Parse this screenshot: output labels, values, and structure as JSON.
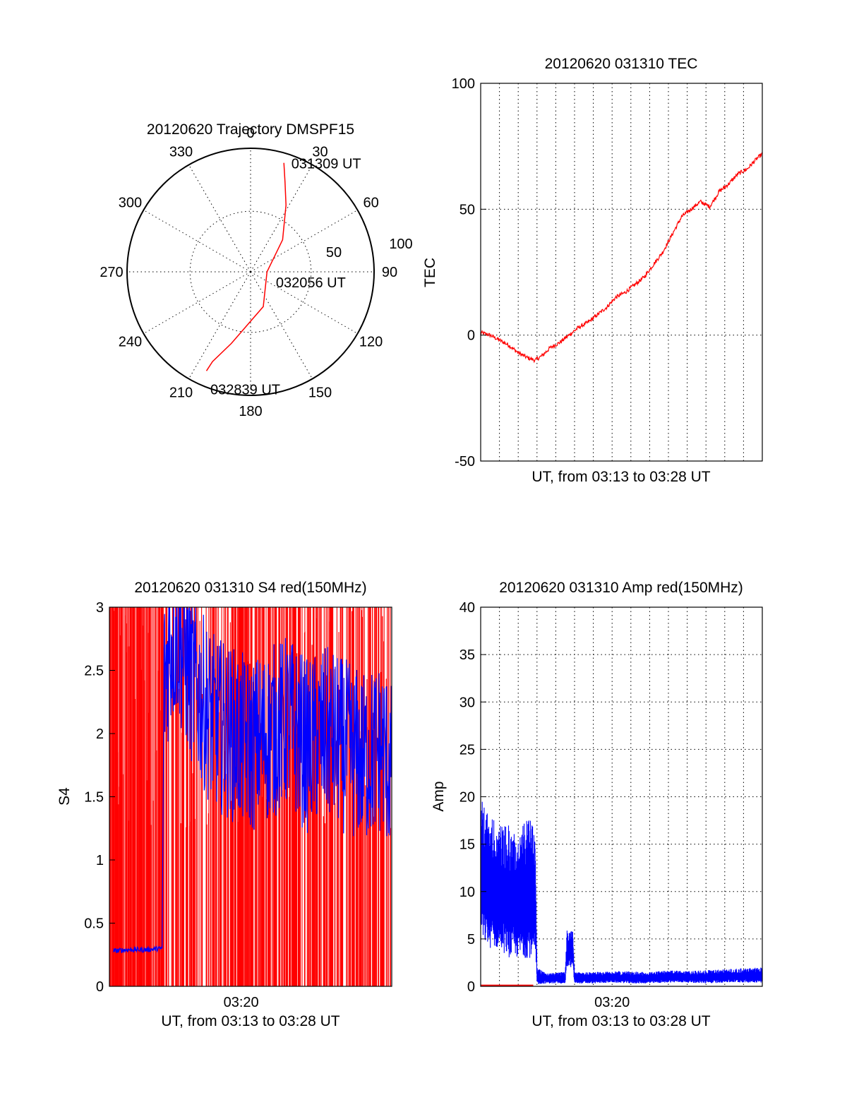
{
  "chart_data": [
    {
      "type": "polar",
      "title": "20120620 Trajectory DMSPF15",
      "azimuth_labels": [
        "0",
        "30",
        "60",
        "90",
        "120",
        "150",
        "180",
        "210",
        "240",
        "270",
        "300",
        "330"
      ],
      "radial_labels": [
        "50",
        "100"
      ],
      "elevation_range": [
        0,
        90
      ],
      "grid": true,
      "series": [
        {
          "color": "#ff0000",
          "points": [
            {
              "az": 17,
              "el": 7
            },
            {
              "az": 21,
              "el": 20
            },
            {
              "az": 28,
              "el": 35
            },
            {
              "az": 45,
              "el": 57
            },
            {
              "az": 90,
              "el": 78
            },
            {
              "az": 160,
              "el": 63
            },
            {
              "az": 195,
              "el": 36
            },
            {
              "az": 203,
              "el": 19
            },
            {
              "az": 204,
              "el": 11
            }
          ]
        }
      ],
      "annotations": [
        {
          "text": "031309 UT",
          "az": 17,
          "el": 7
        },
        {
          "text": "032056 UT",
          "az": 90,
          "el": 78
        },
        {
          "text": "032839 UT",
          "az": 204,
          "el": 11
        }
      ]
    },
    {
      "type": "line",
      "title": "20120620 031310 TEC",
      "xlabel": "UT, from 03:13 to 03:28 UT",
      "ylabel": "TEC",
      "xlim": [
        0,
        15
      ],
      "ylim": [
        -50,
        100
      ],
      "yticks": [
        "100",
        "50",
        "0",
        "-50"
      ],
      "grid": true,
      "series": [
        {
          "color": "#ff0000",
          "x": [
            0,
            0.5,
            1,
            1.5,
            2,
            2.5,
            2.9,
            3.3,
            3.7,
            4.2,
            4.7,
            5.2,
            5.7,
            6.2,
            6.7,
            7.2,
            7.7,
            8.2,
            8.7,
            9.2,
            9.7,
            10.2,
            10.7,
            11.2,
            11.7,
            12.2,
            12.7,
            13.2,
            13.7,
            14.2,
            14.7,
            15
          ],
          "y": [
            1,
            0,
            -2,
            -4,
            -7,
            -9,
            -10,
            -8,
            -5,
            -3,
            0,
            3,
            5,
            8,
            11,
            15,
            17,
            20,
            23,
            28,
            33,
            40,
            47,
            50,
            53,
            51,
            57,
            60,
            64,
            66,
            70,
            72
          ]
        }
      ]
    },
    {
      "type": "line",
      "title": "20120620 031310 S4 red(150MHz)",
      "xlabel": "UT, from 03:13 to 03:28 UT",
      "ylabel": "S4",
      "xlim": [
        0,
        15
      ],
      "ylim": [
        0,
        3
      ],
      "xticks": [
        "03:20"
      ],
      "yticks": [
        "0",
        "0.5",
        "1",
        "1.5",
        "2",
        "2.5",
        "3"
      ],
      "grid": false,
      "series": [
        {
          "color": "#ff0000",
          "style": "dense vertical spikes spanning 0 to 3 across the whole interval"
        },
        {
          "color": "#0000ff",
          "x": [
            0.2,
            1,
            2,
            2.8,
            2.9,
            3.2,
            3.6,
            4.2,
            4.8,
            5.5,
            6.5,
            7.5,
            8.5,
            9.5,
            10.5,
            11.5,
            12.5,
            13.5,
            14.5,
            15
          ],
          "y": [
            0.28,
            0.29,
            0.29,
            0.3,
            2.4,
            2.7,
            2.8,
            2.5,
            2.3,
            2.1,
            2.0,
            1.9,
            2.0,
            2.1,
            1.9,
            2.0,
            1.9,
            1.8,
            1.9,
            1.7
          ]
        }
      ]
    },
    {
      "type": "line",
      "title": "20120620 031310 Amp red(150MHz)",
      "xlabel": "UT, from 03:13 to 03:28 UT",
      "ylabel": "Amp",
      "xlim": [
        0,
        15
      ],
      "ylim": [
        0,
        40
      ],
      "xticks": [
        "03:20"
      ],
      "yticks": [
        "0",
        "5",
        "10",
        "15",
        "20",
        "25",
        "30",
        "35",
        "40"
      ],
      "grid": true,
      "series": [
        {
          "color": "#0000ff",
          "x": [
            0,
            0.5,
            1,
            1.5,
            2,
            2.5,
            2.9,
            3.0,
            3.5,
            4.0,
            4.5,
            4.6,
            4.9,
            5.0,
            6,
            7,
            8,
            9,
            10,
            11,
            12,
            13,
            14,
            15
          ],
          "y_low": [
            5,
            4,
            4,
            3,
            3,
            3,
            3,
            0.2,
            0.3,
            0.3,
            0.3,
            2,
            2,
            0.3,
            0.3,
            0.4,
            0.3,
            0.3,
            0.4,
            0.4,
            0.3,
            0.4,
            0.4,
            0.4
          ],
          "y_high": [
            20,
            18,
            17,
            17,
            16,
            18,
            17,
            2,
            1.5,
            1.4,
            1.6,
            6,
            6,
            1.5,
            1.5,
            1.6,
            1.6,
            1.5,
            1.7,
            1.6,
            1.7,
            1.8,
            1.9,
            2.0
          ]
        },
        {
          "color": "#ff0000",
          "x": [
            0,
            2.8
          ],
          "y": [
            0.1,
            0.1
          ]
        }
      ]
    }
  ]
}
